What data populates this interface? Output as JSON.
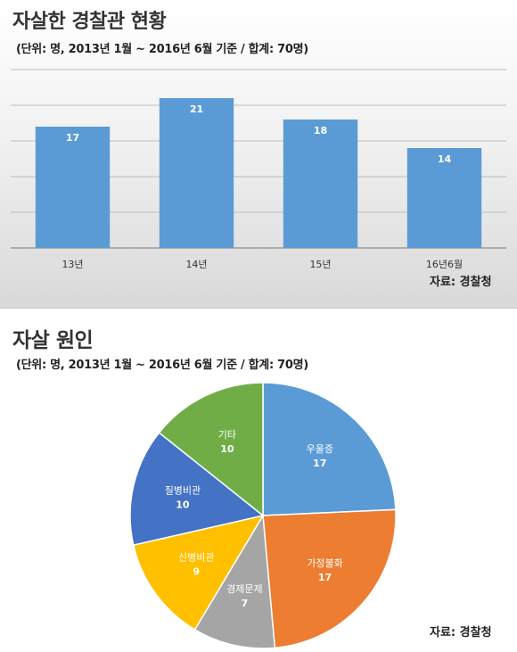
{
  "top": {
    "title": "자살한 경찰관 현황",
    "subtitle": "(단위: 명, 2013년 1월 ~ 2016년 6월 기준 / 합계: 70명)",
    "source": "자료: 경찰청"
  },
  "bottom": {
    "title": "자살 원인",
    "subtitle": "(단위: 명, 2013년 1월 ~ 2016년 6월 기준 / 합계: 70명)",
    "source": "자료: 경찰청"
  },
  "chart_data": [
    {
      "type": "bar",
      "categories": [
        "13년",
        "14년",
        "15년",
        "16년6월"
      ],
      "values": [
        17,
        21,
        18,
        14
      ],
      "ylim": [
        0,
        25
      ],
      "grid": true,
      "bar_color": "#5b9bd5",
      "data_labels": true
    },
    {
      "type": "pie",
      "labels": [
        "우울증",
        "가정불화",
        "경제문제",
        "신병비관",
        "질병비관",
        "기타"
      ],
      "values": [
        17,
        17,
        7,
        9,
        10,
        10
      ],
      "colors": [
        "#5b9bd5",
        "#ed7d31",
        "#a5a5a5",
        "#ffc000",
        "#4472c4",
        "#70ad47"
      ],
      "start": "12 o'clock, clockwise"
    }
  ]
}
